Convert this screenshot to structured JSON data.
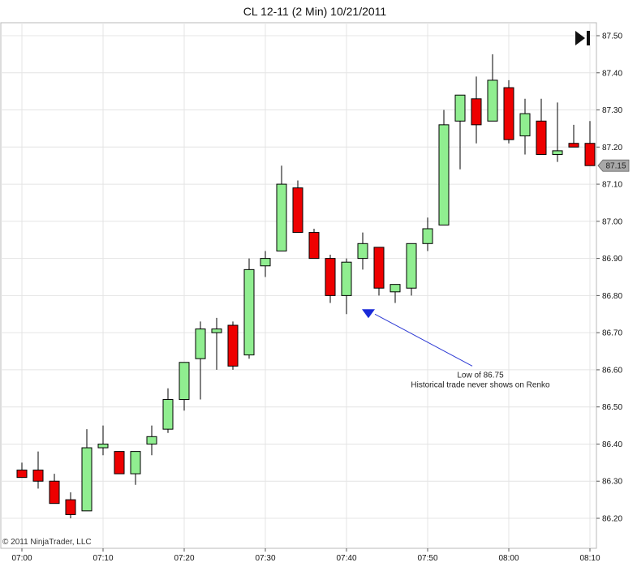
{
  "chart_data": {
    "type": "candlestick",
    "title": "CL 12-11 (2 Min)  10/21/2011",
    "ylim": [
      86.15,
      87.52
    ],
    "y_ticks": [
      "87.50",
      "87.40",
      "87.30",
      "87.20",
      "87.10",
      "87.00",
      "86.90",
      "86.80",
      "86.70",
      "86.60",
      "86.50",
      "86.40",
      "86.30",
      "86.20"
    ],
    "x_ticks": [
      "07:00",
      "07:10",
      "07:20",
      "07:30",
      "07:40",
      "07:50",
      "08:00",
      "08:10"
    ],
    "grid": true,
    "up_color": "#90ee90",
    "down_color": "#ee0000",
    "last_price": "87.15",
    "candles": [
      {
        "time": "07:00",
        "open": 86.33,
        "high": 86.35,
        "low": 86.31,
        "close": 86.31
      },
      {
        "time": "07:02",
        "open": 86.33,
        "high": 86.38,
        "low": 86.28,
        "close": 86.3
      },
      {
        "time": "07:04",
        "open": 86.3,
        "high": 86.32,
        "low": 86.24,
        "close": 86.24
      },
      {
        "time": "07:06",
        "open": 86.25,
        "high": 86.27,
        "low": 86.2,
        "close": 86.21
      },
      {
        "time": "07:08",
        "open": 86.22,
        "high": 86.44,
        "low": 86.22,
        "close": 86.39
      },
      {
        "time": "07:10",
        "open": 86.39,
        "high": 86.45,
        "low": 86.37,
        "close": 86.4
      },
      {
        "time": "07:12",
        "open": 86.38,
        "high": 86.38,
        "low": 86.32,
        "close": 86.32
      },
      {
        "time": "07:14",
        "open": 86.32,
        "high": 86.38,
        "low": 86.29,
        "close": 86.38
      },
      {
        "time": "07:16",
        "open": 86.4,
        "high": 86.45,
        "low": 86.37,
        "close": 86.42
      },
      {
        "time": "07:18",
        "open": 86.44,
        "high": 86.55,
        "low": 86.43,
        "close": 86.52
      },
      {
        "time": "07:20",
        "open": 86.52,
        "high": 86.62,
        "low": 86.49,
        "close": 86.62
      },
      {
        "time": "07:22",
        "open": 86.63,
        "high": 86.73,
        "low": 86.52,
        "close": 86.71
      },
      {
        "time": "07:24",
        "open": 86.7,
        "high": 86.74,
        "low": 86.6,
        "close": 86.71
      },
      {
        "time": "07:26",
        "open": 86.72,
        "high": 86.73,
        "low": 86.6,
        "close": 86.61
      },
      {
        "time": "07:28",
        "open": 86.64,
        "high": 86.9,
        "low": 86.63,
        "close": 86.87
      },
      {
        "time": "07:30",
        "open": 86.88,
        "high": 86.92,
        "low": 86.85,
        "close": 86.9
      },
      {
        "time": "07:32",
        "open": 86.92,
        "high": 87.15,
        "low": 86.92,
        "close": 87.1
      },
      {
        "time": "07:34",
        "open": 87.09,
        "high": 87.11,
        "low": 86.97,
        "close": 86.97
      },
      {
        "time": "07:36",
        "open": 86.97,
        "high": 86.98,
        "low": 86.9,
        "close": 86.9
      },
      {
        "time": "07:38",
        "open": 86.9,
        "high": 86.91,
        "low": 86.78,
        "close": 86.8
      },
      {
        "time": "07:40",
        "open": 86.8,
        "high": 86.9,
        "low": 86.75,
        "close": 86.89
      },
      {
        "time": "07:42",
        "open": 86.9,
        "high": 86.97,
        "low": 86.87,
        "close": 86.94
      },
      {
        "time": "07:44",
        "open": 86.93,
        "high": 86.93,
        "low": 86.8,
        "close": 86.82
      },
      {
        "time": "07:46",
        "open": 86.81,
        "high": 86.83,
        "low": 86.78,
        "close": 86.83
      },
      {
        "time": "07:48",
        "open": 86.82,
        "high": 86.94,
        "low": 86.8,
        "close": 86.94
      },
      {
        "time": "07:50",
        "open": 86.94,
        "high": 87.01,
        "low": 86.92,
        "close": 86.98
      },
      {
        "time": "07:52",
        "open": 86.99,
        "high": 87.3,
        "low": 86.99,
        "close": 87.26
      },
      {
        "time": "07:54",
        "open": 87.27,
        "high": 87.34,
        "low": 87.14,
        "close": 87.34
      },
      {
        "time": "07:56",
        "open": 87.33,
        "high": 87.39,
        "low": 87.21,
        "close": 87.26
      },
      {
        "time": "07:58",
        "open": 87.27,
        "high": 87.45,
        "low": 87.27,
        "close": 87.38
      },
      {
        "time": "08:00",
        "open": 87.36,
        "high": 87.38,
        "low": 87.21,
        "close": 87.22
      },
      {
        "time": "08:02",
        "open": 87.23,
        "high": 87.33,
        "low": 87.18,
        "close": 87.29
      },
      {
        "time": "08:04",
        "open": 87.27,
        "high": 87.33,
        "low": 87.18,
        "close": 87.18
      },
      {
        "time": "08:06",
        "open": 87.18,
        "high": 87.32,
        "low": 87.16,
        "close": 87.19
      },
      {
        "time": "08:08",
        "open": 87.21,
        "high": 87.26,
        "low": 87.2,
        "close": 87.2
      },
      {
        "time": "08:10",
        "open": 87.21,
        "high": 87.27,
        "low": 87.15,
        "close": 87.15
      }
    ],
    "annotation": {
      "lines": [
        "Low of 86.75",
        "Historical trade never shows on Renko"
      ],
      "target_time": "07:42",
      "target_price": 86.75
    },
    "copyright": "© 2011 NinjaTrader, LLC",
    "play_icon": "skip-forward-icon"
  }
}
